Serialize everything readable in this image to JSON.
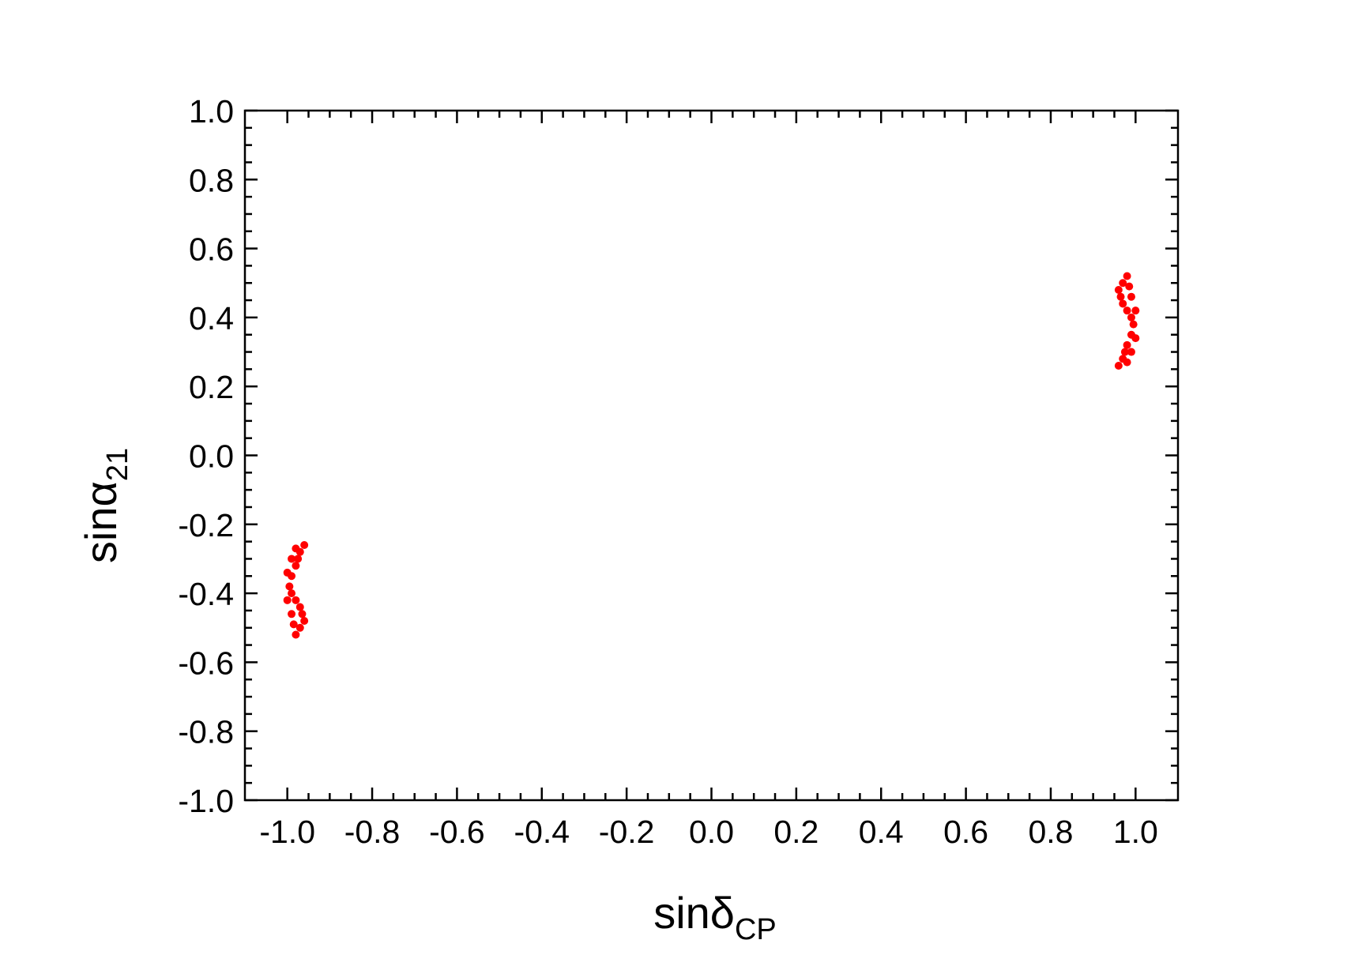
{
  "chart_data": {
    "type": "scatter",
    "xlabel": {
      "text": "sinδ",
      "sub": "CP"
    },
    "ylabel": {
      "text": "sinα",
      "sub": "21"
    },
    "color": "#ff0000",
    "x": [
      0.96,
      0.97,
      0.975,
      0.98,
      0.99,
      0.995,
      0.99,
      0.98,
      0.97,
      0.965,
      0.96,
      0.97,
      0.98,
      0.985,
      0.99,
      1.0,
      1.0,
      0.99,
      0.98,
      -0.96,
      -0.97,
      -0.975,
      -0.98,
      -0.99,
      -0.995,
      -0.99,
      -0.98,
      -0.97,
      -0.965,
      -0.96,
      -0.97,
      -0.98,
      -0.985,
      -0.99,
      -1.0,
      -1.0,
      -0.99,
      -0.98
    ],
    "values": [
      0.26,
      0.28,
      0.3,
      0.32,
      0.35,
      0.38,
      0.4,
      0.42,
      0.44,
      0.46,
      0.48,
      0.5,
      0.52,
      0.49,
      0.46,
      0.42,
      0.34,
      0.3,
      0.27,
      -0.26,
      -0.28,
      -0.3,
      -0.32,
      -0.35,
      -0.38,
      -0.4,
      -0.42,
      -0.44,
      -0.46,
      -0.48,
      -0.5,
      -0.52,
      -0.49,
      -0.46,
      -0.42,
      -0.34,
      -0.3,
      -0.27
    ],
    "xlim": [
      -1.1,
      1.1
    ],
    "ylim": [
      -1.0,
      1.0
    ],
    "xticks": [
      {
        "value": -1.0,
        "label": "-1.0"
      },
      {
        "value": -0.8,
        "label": "-0.8"
      },
      {
        "value": -0.6,
        "label": "-0.6"
      },
      {
        "value": -0.4,
        "label": "-0.4"
      },
      {
        "value": -0.2,
        "label": "-0.2"
      },
      {
        "value": 0,
        "label": "0.0"
      },
      {
        "value": 0.2,
        "label": "0.2"
      },
      {
        "value": 0.4,
        "label": "0.4"
      },
      {
        "value": 0.6,
        "label": "0.6"
      },
      {
        "value": 0.8,
        "label": "0.8"
      },
      {
        "value": 1.0,
        "label": "1.0"
      }
    ],
    "yticks": [
      {
        "value": -1.0,
        "label": "-1.0"
      },
      {
        "value": -0.8,
        "label": "-0.8"
      },
      {
        "value": -0.6,
        "label": "-0.6"
      },
      {
        "value": -0.4,
        "label": "-0.4"
      },
      {
        "value": -0.2,
        "label": "-0.2"
      },
      {
        "value": 0,
        "label": "0.0"
      },
      {
        "value": 0.2,
        "label": "0.2"
      },
      {
        "value": 0.4,
        "label": "0.4"
      },
      {
        "value": 0.6,
        "label": "0.6"
      },
      {
        "value": 0.8,
        "label": "0.8"
      },
      {
        "value": 1.0,
        "label": "1.0"
      }
    ]
  }
}
